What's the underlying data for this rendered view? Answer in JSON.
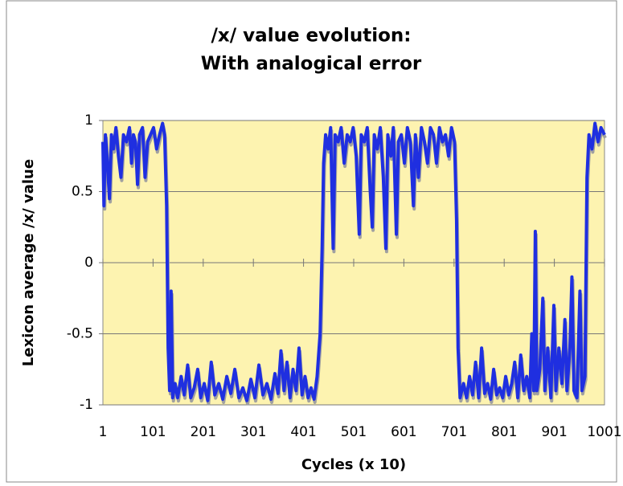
{
  "chart_data": {
    "type": "line",
    "title": [
      "/x/ value evolution:",
      "With analogical error"
    ],
    "xlabel": "Cycles (x 10)",
    "ylabel": "Lexicon average /x/ value",
    "color": "#1f2fe0",
    "shadow_color": "#a0a0a0",
    "background": "#fdf3b0",
    "grid": true,
    "xlim": [
      1,
      1001
    ],
    "xticks": [
      1,
      101,
      201,
      301,
      401,
      501,
      601,
      701,
      801,
      901,
      1001
    ],
    "ylim": [
      -1,
      1
    ],
    "yticks": [
      -1,
      -0.5,
      0,
      0.5,
      1
    ],
    "x": [
      1,
      3,
      6,
      10,
      14,
      18,
      22,
      27,
      32,
      37,
      42,
      48,
      54,
      58,
      62,
      66,
      70,
      74,
      80,
      85,
      90,
      96,
      102,
      108,
      114,
      120,
      124,
      128,
      131,
      134,
      137,
      140,
      145,
      150,
      157,
      163,
      170,
      176,
      183,
      190,
      196,
      203,
      210,
      217,
      224,
      232,
      240,
      248,
      256,
      264,
      272,
      280,
      288,
      296,
      304,
      312,
      320,
      328,
      336,
      344,
      350,
      356,
      362,
      368,
      374,
      380,
      386,
      392,
      398,
      404,
      410,
      416,
      422,
      428,
      434,
      438,
      441,
      445,
      450,
      455,
      460,
      464,
      470,
      476,
      482,
      488,
      494,
      500,
      506,
      512,
      516,
      522,
      528,
      534,
      538,
      542,
      548,
      554,
      560,
      565,
      569,
      575,
      580,
      586,
      590,
      596,
      602,
      608,
      614,
      620,
      624,
      630,
      636,
      642,
      648,
      654,
      660,
      666,
      672,
      678,
      684,
      690,
      696,
      702,
      706,
      709,
      713,
      720,
      726,
      732,
      738,
      744,
      750,
      756,
      762,
      768,
      774,
      780,
      786,
      792,
      798,
      804,
      810,
      816,
      822,
      828,
      834,
      840,
      846,
      852,
      856,
      860,
      863,
      866,
      872,
      878,
      882,
      888,
      894,
      900,
      904,
      910,
      916,
      922,
      926,
      932,
      936,
      940,
      946,
      952,
      956,
      962,
      966,
      970,
      976,
      982,
      988,
      994,
      1001
    ],
    "values": [
      0.85,
      0.4,
      0.9,
      0.7,
      0.45,
      0.9,
      0.8,
      0.95,
      0.75,
      0.6,
      0.9,
      0.85,
      0.95,
      0.7,
      0.9,
      0.85,
      0.55,
      0.9,
      0.95,
      0.6,
      0.85,
      0.9,
      0.95,
      0.8,
      0.9,
      0.98,
      0.9,
      0.4,
      -0.6,
      -0.9,
      -0.2,
      -0.95,
      -0.85,
      -0.95,
      -0.8,
      -0.93,
      -0.72,
      -0.95,
      -0.88,
      -0.75,
      -0.95,
      -0.85,
      -0.97,
      -0.7,
      -0.93,
      -0.85,
      -0.96,
      -0.8,
      -0.92,
      -0.75,
      -0.95,
      -0.88,
      -0.97,
      -0.82,
      -0.95,
      -0.72,
      -0.93,
      -0.85,
      -0.96,
      -0.78,
      -0.92,
      -0.62,
      -0.9,
      -0.7,
      -0.95,
      -0.75,
      -0.9,
      -0.6,
      -0.93,
      -0.8,
      -0.95,
      -0.88,
      -0.96,
      -0.8,
      -0.5,
      0.1,
      0.7,
      0.9,
      0.8,
      0.95,
      0.1,
      0.9,
      0.85,
      0.95,
      0.7,
      0.9,
      0.85,
      0.95,
      0.75,
      0.2,
      0.9,
      0.85,
      0.95,
      0.5,
      0.25,
      0.9,
      0.8,
      0.95,
      0.6,
      0.1,
      0.9,
      0.75,
      0.95,
      0.2,
      0.85,
      0.9,
      0.7,
      0.95,
      0.85,
      0.4,
      0.9,
      0.6,
      0.95,
      0.85,
      0.7,
      0.95,
      0.9,
      0.7,
      0.95,
      0.85,
      0.9,
      0.75,
      0.95,
      0.85,
      0.3,
      -0.6,
      -0.95,
      -0.85,
      -0.95,
      -0.8,
      -0.93,
      -0.7,
      -0.95,
      -0.6,
      -0.92,
      -0.85,
      -0.96,
      -0.75,
      -0.93,
      -0.88,
      -0.95,
      -0.8,
      -0.93,
      -0.85,
      -0.7,
      -0.95,
      -0.65,
      -0.9,
      -0.8,
      -0.95,
      -0.5,
      -0.9,
      0.22,
      -0.9,
      -0.75,
      -0.25,
      -0.9,
      -0.6,
      -0.95,
      -0.3,
      -0.9,
      -0.6,
      -0.85,
      -0.4,
      -0.9,
      -0.6,
      -0.1,
      -0.9,
      -0.95,
      -0.2,
      -0.9,
      -0.8,
      0.6,
      0.9,
      0.8,
      0.98,
      0.85,
      0.95,
      0.9
    ]
  }
}
